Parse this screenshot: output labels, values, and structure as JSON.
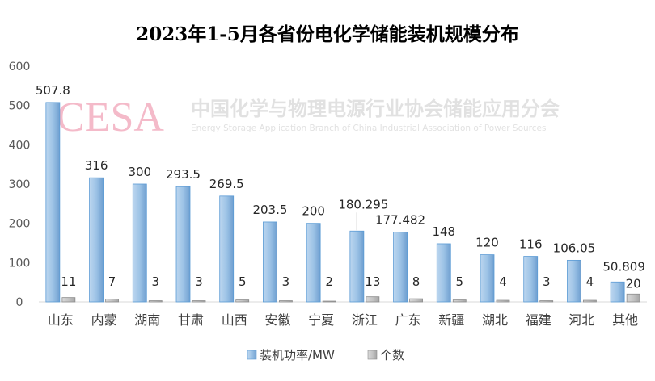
{
  "watermark": {
    "logo": "CESA",
    "cn": "中国化学与物理电源行业协会储能应用分会",
    "en": "Energy Storage Application Branch of China Industrial Association of Power Sources"
  },
  "chart_data": {
    "type": "bar",
    "title": "2023年1-5月各省份电化学储能装机规模分布",
    "categories": [
      "山东",
      "内蒙",
      "湖南",
      "甘肃",
      "山西",
      "安徽",
      "宁夏",
      "浙江",
      "广东",
      "新疆",
      "湖北",
      "福建",
      "河北",
      "其他"
    ],
    "series": [
      {
        "name": "装机功率/MW",
        "color": "#9dc3e6",
        "values": [
          507.8,
          316,
          300,
          293.5,
          269.5,
          203.5,
          200,
          180.295,
          177.482,
          148,
          120,
          116,
          106.05,
          50.809
        ],
        "labels": [
          "507.8",
          "316",
          "300",
          "293.5",
          "269.5",
          "203.5",
          "200",
          "180.295",
          "177.482",
          "148",
          "120",
          "116",
          "106.05",
          "50.809"
        ]
      },
      {
        "name": "个数",
        "color": "#bfbfbf",
        "values": [
          11,
          7,
          3,
          3,
          5,
          3,
          2,
          13,
          8,
          5,
          4,
          3,
          4,
          20
        ],
        "labels": [
          "11",
          "7",
          "3",
          "3",
          "5",
          "3",
          "2",
          "13",
          "8",
          "5",
          "4",
          "3",
          "4",
          "20"
        ]
      }
    ],
    "yticks": [
      "0",
      "100",
      "200",
      "300",
      "400",
      "500",
      "600"
    ],
    "ylim": [
      0,
      600
    ],
    "grid": false,
    "legend": "bottom"
  }
}
